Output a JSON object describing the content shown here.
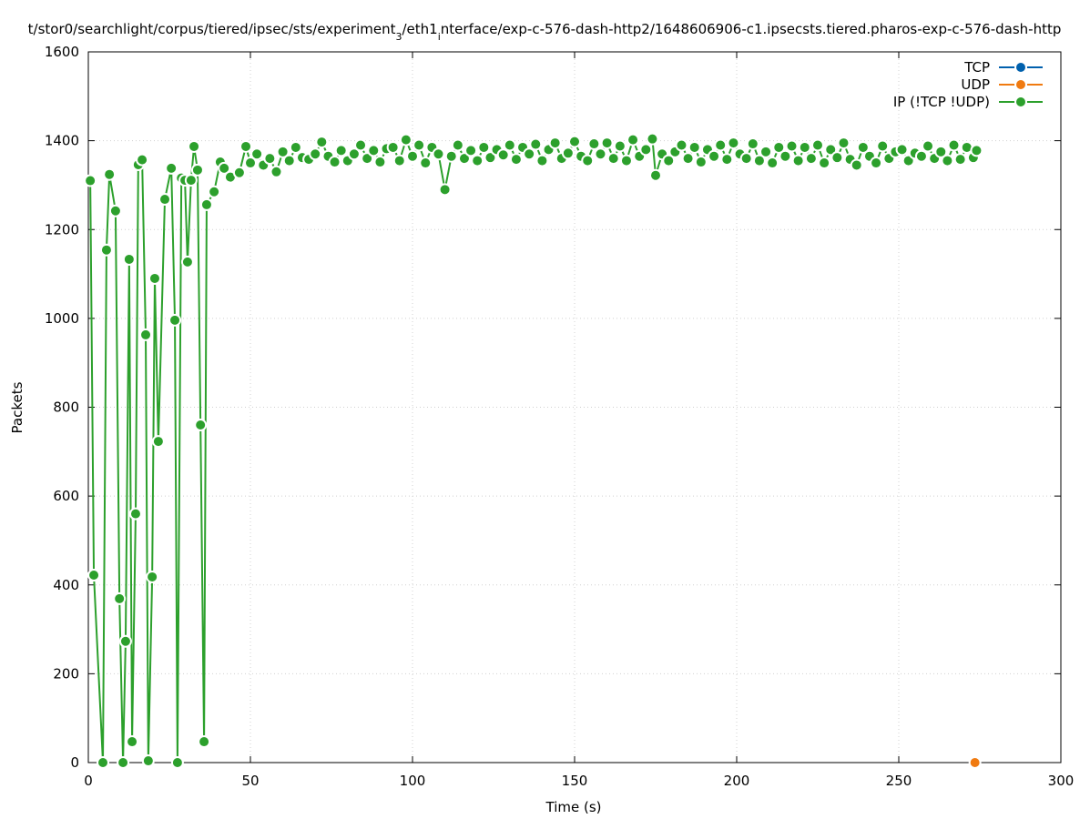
{
  "chart_data": {
    "type": "line",
    "title": [
      "t/stor0/searchlight/corpus/tiered/ipsec/sts/experiment",
      "3",
      "/eth1",
      "i",
      "nterface/exp-c-576-dash-http2/1648606906-c1.ipsecsts.tiered.pharos-exp-c-576-dash-http"
    ],
    "xlabel": "Time (s)",
    "ylabel": "Packets",
    "xlim": [
      0,
      300
    ],
    "xticks": [
      0,
      50,
      100,
      150,
      200,
      250,
      300
    ],
    "ylim": [
      0,
      1600
    ],
    "yticks": [
      0,
      200,
      400,
      600,
      800,
      1000,
      1200,
      1400,
      1600
    ],
    "grid": true,
    "legend": "top-right",
    "series": [
      {
        "name": "TCP",
        "color": "#0060ad",
        "x": [],
        "values": []
      },
      {
        "name": "UDP",
        "color": "#f07a10",
        "x": [
          273.5
        ],
        "values": [
          0
        ]
      },
      {
        "name": "IP (!TCP  !UDP)",
        "color": "#2ca02c",
        "x": [
          0.6,
          1.7,
          4.5,
          5.6,
          6.5,
          8.4,
          9.6,
          10.7,
          11.5,
          12.6,
          13.5,
          14.6,
          15.4,
          16.6,
          17.7,
          18.5,
          19.7,
          20.5,
          21.6,
          23.6,
          25.6,
          26.7,
          27.5,
          28.7,
          29.8,
          30.6,
          31.7,
          32.6,
          33.7,
          34.6,
          35.7,
          36.5,
          38.8,
          40.7,
          41.9,
          43.8,
          46.6,
          48.6,
          50,
          52,
          54,
          56,
          58,
          60,
          62,
          64,
          66,
          68,
          70,
          72,
          74,
          76,
          78,
          80,
          82,
          84,
          86,
          88,
          90,
          92,
          94,
          96,
          98,
          100,
          102,
          104,
          106,
          108,
          110,
          112,
          114,
          116,
          118,
          120,
          122,
          124,
          126,
          128,
          130,
          132,
          134,
          136,
          138,
          140,
          142,
          144,
          146,
          148,
          150,
          152,
          154,
          156,
          158,
          160,
          162,
          164,
          166,
          168,
          170,
          172,
          174,
          175,
          177,
          179,
          181,
          183,
          185,
          187,
          189,
          191,
          193,
          195,
          197,
          199,
          201,
          203,
          205,
          207,
          209,
          211,
          213,
          215,
          217,
          219,
          221,
          223,
          225,
          227,
          229,
          231,
          233,
          235,
          237,
          239,
          241,
          243,
          245,
          247,
          249,
          251,
          253,
          255,
          257,
          259,
          261,
          263,
          265,
          267,
          269,
          271,
          273,
          274
        ],
        "values": [
          1310,
          422,
          0,
          1154,
          1324,
          1242,
          369,
          0,
          273,
          1133,
          47,
          560,
          1346,
          1357,
          963,
          4,
          418,
          1090,
          723,
          1268,
          1338,
          996,
          0,
          1316,
          1311,
          1127,
          1311,
          1387,
          1334,
          760,
          47,
          1256,
          1285,
          1352,
          1338,
          1318,
          1328,
          1387,
          1350,
          1370,
          1345,
          1360,
          1330,
          1375,
          1355,
          1385,
          1362,
          1358,
          1370,
          1397,
          1365,
          1352,
          1378,
          1355,
          1370,
          1390,
          1360,
          1378,
          1352,
          1382,
          1385,
          1355,
          1402,
          1365,
          1390,
          1350,
          1385,
          1370,
          1290,
          1365,
          1390,
          1360,
          1378,
          1355,
          1385,
          1362,
          1380,
          1368,
          1390,
          1358,
          1385,
          1370,
          1392,
          1355,
          1380,
          1395,
          1360,
          1372,
          1398,
          1365,
          1355,
          1393,
          1370,
          1395,
          1360,
          1388,
          1355,
          1402,
          1365,
          1380,
          1404,
          1322,
          1370,
          1355,
          1375,
          1390,
          1360,
          1385,
          1352,
          1380,
          1365,
          1390,
          1358,
          1395,
          1370,
          1360,
          1393,
          1355,
          1375,
          1350,
          1385,
          1365,
          1388,
          1355,
          1385,
          1360,
          1390,
          1350,
          1380,
          1362,
          1395,
          1358,
          1345,
          1385,
          1365,
          1350,
          1388,
          1360,
          1375,
          1380,
          1355,
          1372,
          1365,
          1388,
          1360,
          1375,
          1355,
          1390,
          1358,
          1385,
          1362,
          1378
        ]
      }
    ]
  }
}
